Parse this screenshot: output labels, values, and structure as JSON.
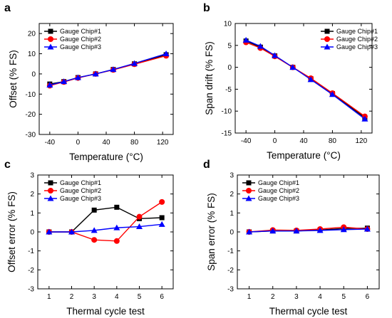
{
  "colors": {
    "chip1": "#000000",
    "chip2": "#ff0000",
    "chip3": "#0000ff"
  },
  "chart_data": [
    {
      "panel": "a",
      "type": "line",
      "xlabel": "Temperature (°C)",
      "ylabel": "Offset (% FS)",
      "xlim": [
        -55,
        135
      ],
      "ylim": [
        -30,
        25
      ],
      "xticks": [
        -40,
        0,
        40,
        80,
        120
      ],
      "yticks": [
        -30,
        -20,
        -10,
        0,
        10,
        20
      ],
      "legend": "top-left",
      "series": [
        {
          "name": "Gauge Chip#1",
          "marker": "square",
          "color": "#000000",
          "x": [
            -40,
            -20,
            0,
            25,
            50,
            80,
            125
          ],
          "y": [
            -5,
            -3.8,
            -1.8,
            0,
            2.2,
            5,
            9.5
          ]
        },
        {
          "name": "Gauge Chip#2",
          "marker": "circle",
          "color": "#ff0000",
          "x": [
            -40,
            -20,
            0,
            25,
            50,
            80,
            125
          ],
          "y": [
            -5.8,
            -4,
            -2,
            0,
            2,
            4.8,
            9
          ]
        },
        {
          "name": "Gauge Chip#3",
          "marker": "triangle",
          "color": "#0000ff",
          "x": [
            -40,
            -20,
            0,
            25,
            50,
            80,
            125
          ],
          "y": [
            -5.5,
            -3.8,
            -1.8,
            0,
            2.2,
            5.2,
            10
          ]
        }
      ]
    },
    {
      "panel": "b",
      "type": "line",
      "xlabel": "Temperature (°C)",
      "ylabel": "Span drift (% FS)",
      "xlim": [
        -55,
        135
      ],
      "ylim": [
        -15,
        10
      ],
      "xticks": [
        -40,
        0,
        40,
        80,
        120
      ],
      "yticks": [
        -15,
        -10,
        -5,
        0,
        5,
        10
      ],
      "legend": "top-right",
      "series": [
        {
          "name": "Gauge Chip#1",
          "marker": "square",
          "color": "#000000",
          "x": [
            -40,
            -20,
            0,
            25,
            50,
            80,
            125
          ],
          "y": [
            6,
            4.6,
            2.6,
            0,
            -2.6,
            -6,
            -11.5
          ]
        },
        {
          "name": "Gauge Chip#2",
          "marker": "circle",
          "color": "#ff0000",
          "x": [
            -40,
            -20,
            0,
            25,
            50,
            80,
            125
          ],
          "y": [
            5.7,
            4.4,
            2.5,
            0,
            -2.5,
            -5.9,
            -11.2
          ]
        },
        {
          "name": "Gauge Chip#3",
          "marker": "triangle",
          "color": "#0000ff",
          "x": [
            -40,
            -20,
            0,
            25,
            50,
            80,
            125
          ],
          "y": [
            6.2,
            4.8,
            2.7,
            0,
            -2.8,
            -6.2,
            -11.8
          ]
        }
      ]
    },
    {
      "panel": "c",
      "type": "line",
      "xlabel": "Thermal cycle test",
      "ylabel": "Offset error (% FS)",
      "xlim": [
        0.5,
        6.5
      ],
      "ylim": [
        -3,
        3
      ],
      "xticks": [
        1,
        2,
        3,
        4,
        5,
        6
      ],
      "yticks": [
        -3,
        -2,
        -1,
        0,
        1,
        2,
        3
      ],
      "legend": "top-left",
      "series": [
        {
          "name": "Gauge Chip#1",
          "marker": "square",
          "color": "#000000",
          "x": [
            1,
            2,
            3,
            4,
            5,
            6
          ],
          "y": [
            0,
            0,
            1.15,
            1.3,
            0.7,
            0.75
          ]
        },
        {
          "name": "Gauge Chip#2",
          "marker": "circle",
          "color": "#ff0000",
          "x": [
            1,
            2,
            3,
            4,
            5,
            6
          ],
          "y": [
            0,
            0,
            -0.42,
            -0.48,
            0.8,
            1.58
          ]
        },
        {
          "name": "Gauge Chip#3",
          "marker": "triangle",
          "color": "#0000ff",
          "x": [
            1,
            2,
            3,
            4,
            5,
            6
          ],
          "y": [
            0,
            0,
            0.08,
            0.22,
            0.28,
            0.4
          ]
        }
      ]
    },
    {
      "panel": "d",
      "type": "line",
      "xlabel": "Thermal cycle test",
      "ylabel": "Span error (% FS)",
      "xlim": [
        0.5,
        6.5
      ],
      "ylim": [
        -3,
        3
      ],
      "xticks": [
        1,
        2,
        3,
        4,
        5,
        6
      ],
      "yticks": [
        -3,
        -2,
        -1,
        0,
        1,
        2,
        3
      ],
      "legend": "top-left",
      "series": [
        {
          "name": "Gauge Chip#1",
          "marker": "square",
          "color": "#000000",
          "x": [
            1,
            2,
            3,
            4,
            5,
            6
          ],
          "y": [
            0,
            0.05,
            0.05,
            0.1,
            0.18,
            0.2
          ]
        },
        {
          "name": "Gauge Chip#2",
          "marker": "circle",
          "color": "#ff0000",
          "x": [
            1,
            2,
            3,
            4,
            5,
            6
          ],
          "y": [
            0,
            0.1,
            0.08,
            0.15,
            0.25,
            0.15
          ]
        },
        {
          "name": "Gauge Chip#3",
          "marker": "triangle",
          "color": "#0000ff",
          "x": [
            1,
            2,
            3,
            4,
            5,
            6
          ],
          "y": [
            0,
            0.05,
            0.05,
            0.08,
            0.12,
            0.15
          ]
        }
      ]
    }
  ]
}
